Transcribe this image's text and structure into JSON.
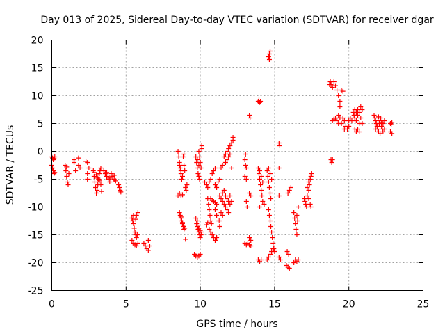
{
  "chart_data": {
    "type": "scatter",
    "title": "Day 013 of 2025, Sidereal Day-to-day VTEC variation (SDTVAR) for receiver dgar",
    "xlabel": "GPS time / hours",
    "ylabel": "SDTVAR / TECUs",
    "xlim": [
      0,
      25
    ],
    "ylim": [
      -25,
      20
    ],
    "xticks": [
      0,
      5,
      10,
      15,
      20,
      25
    ],
    "yticks": [
      -25,
      -20,
      -15,
      -10,
      -5,
      0,
      5,
      10,
      15,
      20
    ],
    "grid": true,
    "marker": "plus",
    "color": "#ff0000",
    "points": [
      [
        0.0,
        -1.0
      ],
      [
        0.05,
        -1.2
      ],
      [
        0.1,
        -1.5
      ],
      [
        0.15,
        -1.3
      ],
      [
        0.2,
        -1.0
      ],
      [
        0.05,
        -3.0
      ],
      [
        0.1,
        -3.5
      ],
      [
        0.15,
        -4.0
      ],
      [
        0.2,
        -3.8
      ],
      [
        0.0,
        -2.5
      ],
      [
        0.9,
        -2.5
      ],
      [
        0.95,
        -3.5
      ],
      [
        1.0,
        -4.5
      ],
      [
        1.05,
        -5.5
      ],
      [
        1.1,
        -6.0
      ],
      [
        1.0,
        -2.8
      ],
      [
        1.15,
        -4.0
      ],
      [
        1.5,
        -1.5
      ],
      [
        1.5,
        -2.0
      ],
      [
        1.6,
        -3.5
      ],
      [
        1.8,
        -1.2
      ],
      [
        1.8,
        -2.5
      ],
      [
        1.9,
        -3.0
      ],
      [
        2.3,
        -1.8
      ],
      [
        2.4,
        -2.0
      ],
      [
        2.4,
        -4.0
      ],
      [
        2.4,
        -5.0
      ],
      [
        2.5,
        -3.0
      ],
      [
        2.8,
        -3.5
      ],
      [
        2.85,
        -4.5
      ],
      [
        2.9,
        -5.5
      ],
      [
        2.95,
        -6.5
      ],
      [
        3.0,
        -7.5
      ],
      [
        3.05,
        -7.0
      ],
      [
        3.1,
        -6.0
      ],
      [
        3.15,
        -5.0
      ],
      [
        3.2,
        -4.0
      ],
      [
        3.25,
        -3.5
      ],
      [
        3.3,
        -3.0
      ],
      [
        2.9,
        -3.8
      ],
      [
        3.0,
        -4.2
      ],
      [
        3.1,
        -4.8
      ],
      [
        3.2,
        -5.3
      ],
      [
        3.3,
        -6.0
      ],
      [
        3.35,
        -7.2
      ],
      [
        3.5,
        -3.5
      ],
      [
        3.6,
        -4.0
      ],
      [
        3.7,
        -4.5
      ],
      [
        3.8,
        -5.0
      ],
      [
        3.9,
        -5.5
      ],
      [
        3.7,
        -3.8
      ],
      [
        3.9,
        -4.8
      ],
      [
        4.0,
        -4.0
      ],
      [
        4.1,
        -4.5
      ],
      [
        4.2,
        -5.0
      ],
      [
        4.3,
        -5.3
      ],
      [
        4.2,
        -4.3
      ],
      [
        4.5,
        -6.0
      ],
      [
        4.55,
        -6.5
      ],
      [
        4.6,
        -7.0
      ],
      [
        4.65,
        -7.3
      ],
      [
        5.4,
        -12.0
      ],
      [
        5.45,
        -12.5
      ],
      [
        5.5,
        -13.0
      ],
      [
        5.55,
        -13.8
      ],
      [
        5.6,
        -14.5
      ],
      [
        5.65,
        -15.0
      ],
      [
        5.7,
        -15.5
      ],
      [
        5.75,
        -15.0
      ],
      [
        5.5,
        -11.5
      ],
      [
        5.65,
        -12.2
      ],
      [
        5.7,
        -11.5
      ],
      [
        5.8,
        -11.0
      ],
      [
        5.4,
        -16.0
      ],
      [
        5.5,
        -16.5
      ],
      [
        5.6,
        -16.8
      ],
      [
        5.7,
        -17.0
      ],
      [
        5.8,
        -16.5
      ],
      [
        6.2,
        -16.5
      ],
      [
        6.3,
        -17.0
      ],
      [
        6.4,
        -17.5
      ],
      [
        6.5,
        -17.8
      ],
      [
        6.5,
        -16.0
      ],
      [
        6.6,
        -17.0
      ],
      [
        8.5,
        0.0
      ],
      [
        8.55,
        -1.0
      ],
      [
        8.6,
        -2.0
      ],
      [
        8.65,
        -3.0
      ],
      [
        8.7,
        -4.0
      ],
      [
        8.75,
        -5.0
      ],
      [
        8.6,
        -2.5
      ],
      [
        8.7,
        -3.5
      ],
      [
        8.8,
        -4.5
      ],
      [
        8.85,
        -1.0
      ],
      [
        8.9,
        -0.5
      ],
      [
        8.9,
        -2.5
      ],
      [
        8.95,
        -3.5
      ],
      [
        8.5,
        -8.0
      ],
      [
        8.6,
        -7.5
      ],
      [
        8.7,
        -8.0
      ],
      [
        8.8,
        -7.8
      ],
      [
        8.6,
        -11.0
      ],
      [
        8.65,
        -11.5
      ],
      [
        8.7,
        -12.0
      ],
      [
        8.75,
        -12.5
      ],
      [
        8.8,
        -13.0
      ],
      [
        8.85,
        -13.5
      ],
      [
        8.9,
        -14.0
      ],
      [
        8.95,
        -13.8
      ],
      [
        8.7,
        -11.8
      ],
      [
        8.8,
        -12.8
      ],
      [
        9.0,
        -6.5
      ],
      [
        9.05,
        -7.0
      ],
      [
        9.1,
        -6.0
      ],
      [
        9.0,
        -15.8
      ],
      [
        9.7,
        -1.0
      ],
      [
        9.75,
        -2.0
      ],
      [
        9.8,
        -3.0
      ],
      [
        9.85,
        -4.0
      ],
      [
        9.9,
        -4.5
      ],
      [
        9.95,
        -5.0
      ],
      [
        9.9,
        0.0
      ],
      [
        9.95,
        -1.0
      ],
      [
        10.0,
        -2.0
      ],
      [
        10.05,
        -3.0
      ],
      [
        10.1,
        0.5
      ],
      [
        10.1,
        1.0
      ],
      [
        9.8,
        -1.5
      ],
      [
        9.9,
        -2.5
      ],
      [
        9.7,
        -12.0
      ],
      [
        9.75,
        -13.0
      ],
      [
        9.8,
        -13.5
      ],
      [
        9.85,
        -14.0
      ],
      [
        9.9,
        -14.5
      ],
      [
        9.95,
        -15.0
      ],
      [
        10.0,
        -15.5
      ],
      [
        10.05,
        -15.0
      ],
      [
        10.1,
        -14.5
      ],
      [
        9.8,
        -12.5
      ],
      [
        9.9,
        -13.8
      ],
      [
        10.0,
        -14.2
      ],
      [
        9.6,
        -18.5
      ],
      [
        9.7,
        -18.8
      ],
      [
        9.8,
        -19.0
      ],
      [
        9.9,
        -18.8
      ],
      [
        10.0,
        -18.5
      ],
      [
        10.3,
        -5.5
      ],
      [
        10.4,
        -6.0
      ],
      [
        10.5,
        -6.5
      ],
      [
        10.6,
        -5.5
      ],
      [
        10.7,
        -5.0
      ],
      [
        10.8,
        -4.0
      ],
      [
        10.9,
        -3.5
      ],
      [
        11.0,
        -3.0
      ],
      [
        10.5,
        -8.5
      ],
      [
        10.55,
        -9.5
      ],
      [
        10.6,
        -10.5
      ],
      [
        10.65,
        -11.5
      ],
      [
        10.7,
        -12.5
      ],
      [
        10.75,
        -13.0
      ],
      [
        10.5,
        -12.8
      ],
      [
        10.4,
        -13.2
      ],
      [
        10.6,
        -14.0
      ],
      [
        10.7,
        -14.5
      ],
      [
        10.8,
        -15.0
      ],
      [
        10.9,
        -15.5
      ],
      [
        11.0,
        -16.0
      ],
      [
        11.1,
        -15.5
      ],
      [
        10.7,
        -8.5
      ],
      [
        10.8,
        -8.8
      ],
      [
        10.9,
        -9.0
      ],
      [
        11.0,
        -9.2
      ],
      [
        11.1,
        -9.5
      ],
      [
        11.0,
        -10.5
      ],
      [
        11.1,
        -11.5
      ],
      [
        11.2,
        -12.5
      ],
      [
        11.3,
        -13.5
      ],
      [
        11.0,
        -6.0
      ],
      [
        11.1,
        -6.5
      ],
      [
        11.2,
        -5.5
      ],
      [
        11.3,
        -5.0
      ],
      [
        11.3,
        -8.0
      ],
      [
        11.4,
        -8.5
      ],
      [
        11.5,
        -9.0
      ],
      [
        11.6,
        -9.5
      ],
      [
        11.7,
        -10.0
      ],
      [
        11.8,
        -10.5
      ],
      [
        11.9,
        -11.0
      ],
      [
        11.5,
        -7.5
      ],
      [
        11.6,
        -7.0
      ],
      [
        11.7,
        -8.0
      ],
      [
        11.8,
        -8.5
      ],
      [
        11.9,
        -9.0
      ],
      [
        12.0,
        -9.5
      ],
      [
        12.0,
        -8.0
      ],
      [
        12.1,
        -9.0
      ],
      [
        11.4,
        -11.0
      ],
      [
        11.5,
        -11.5
      ],
      [
        11.3,
        -12.5
      ],
      [
        11.4,
        -3.0
      ],
      [
        11.5,
        -2.5
      ],
      [
        11.6,
        -1.0
      ],
      [
        11.7,
        -0.5
      ],
      [
        11.8,
        0.0
      ],
      [
        11.9,
        0.5
      ],
      [
        12.0,
        1.0
      ],
      [
        12.1,
        1.5
      ],
      [
        12.2,
        2.0
      ],
      [
        12.2,
        2.5
      ],
      [
        11.7,
        -2.0
      ],
      [
        11.8,
        -1.5
      ],
      [
        11.9,
        -1.0
      ],
      [
        12.0,
        -0.5
      ],
      [
        12.1,
        -3.0
      ],
      [
        13.0,
        -1.5
      ],
      [
        13.05,
        -2.5
      ],
      [
        13.1,
        -3.0
      ],
      [
        13.05,
        -0.5
      ],
      [
        13.1,
        -5.0
      ],
      [
        13.0,
        -4.5
      ],
      [
        13.1,
        -9.0
      ],
      [
        13.15,
        -10.0
      ],
      [
        13.0,
        -16.5
      ],
      [
        13.1,
        -16.8
      ],
      [
        13.2,
        -16.5
      ],
      [
        13.3,
        -16.8
      ],
      [
        13.4,
        -17.0
      ],
      [
        13.3,
        -15.5
      ],
      [
        13.4,
        -16.0
      ],
      [
        13.3,
        6.5
      ],
      [
        13.35,
        6.0
      ],
      [
        13.3,
        -7.5
      ],
      [
        13.4,
        -8.0
      ],
      [
        13.9,
        -3.0
      ],
      [
        13.95,
        -4.0
      ],
      [
        14.0,
        -5.0
      ],
      [
        14.05,
        -6.0
      ],
      [
        14.1,
        -7.0
      ],
      [
        14.15,
        -8.0
      ],
      [
        14.2,
        -9.0
      ],
      [
        14.3,
        -9.5
      ],
      [
        14.0,
        -3.5
      ],
      [
        14.1,
        -4.5
      ],
      [
        14.2,
        -5.5
      ],
      [
        13.9,
        9.0
      ],
      [
        13.95,
        9.2
      ],
      [
        14.0,
        8.8
      ],
      [
        14.05,
        9.0
      ],
      [
        14.0,
        -10.0
      ],
      [
        13.9,
        -19.5
      ],
      [
        14.0,
        -19.8
      ],
      [
        14.1,
        -19.5
      ],
      [
        14.6,
        17.0
      ],
      [
        14.65,
        17.5
      ],
      [
        14.7,
        18.0
      ],
      [
        14.65,
        16.5
      ],
      [
        14.5,
        -3.5
      ],
      [
        14.55,
        -4.5
      ],
      [
        14.6,
        -5.5
      ],
      [
        14.65,
        -6.5
      ],
      [
        14.7,
        -7.5
      ],
      [
        14.75,
        -8.5
      ],
      [
        14.7,
        -4.0
      ],
      [
        14.8,
        -5.0
      ],
      [
        14.6,
        -3.0
      ],
      [
        14.6,
        -10.5
      ],
      [
        14.65,
        -11.5
      ],
      [
        14.7,
        -12.5
      ],
      [
        14.75,
        -13.5
      ],
      [
        14.8,
        -14.5
      ],
      [
        14.85,
        -15.5
      ],
      [
        14.9,
        -16.5
      ],
      [
        14.95,
        -17.5
      ],
      [
        15.0,
        -18.0
      ],
      [
        14.6,
        -19.0
      ],
      [
        14.7,
        -18.5
      ],
      [
        14.8,
        -18.0
      ],
      [
        14.9,
        -17.5
      ],
      [
        14.5,
        -19.5
      ],
      [
        15.3,
        1.5
      ],
      [
        15.35,
        1.0
      ],
      [
        15.3,
        -3.0
      ],
      [
        15.3,
        -8.0
      ],
      [
        15.3,
        -19.0
      ],
      [
        15.4,
        -19.5
      ],
      [
        15.8,
        -20.5
      ],
      [
        15.9,
        -20.8
      ],
      [
        16.0,
        -21.0
      ],
      [
        15.85,
        -18.0
      ],
      [
        15.95,
        -18.5
      ],
      [
        16.0,
        -7.0
      ],
      [
        16.1,
        -6.5
      ],
      [
        15.9,
        -7.5
      ],
      [
        16.3,
        -11.0
      ],
      [
        16.35,
        -12.0
      ],
      [
        16.4,
        -13.0
      ],
      [
        16.45,
        -14.0
      ],
      [
        16.5,
        -15.0
      ],
      [
        16.6,
        -10.0
      ],
      [
        16.5,
        -11.5
      ],
      [
        16.55,
        -12.5
      ],
      [
        16.4,
        -19.5
      ],
      [
        16.5,
        -19.8
      ],
      [
        16.6,
        -19.5
      ],
      [
        16.3,
        -20.0
      ],
      [
        17.0,
        -8.5
      ],
      [
        17.05,
        -9.0
      ],
      [
        17.1,
        -9.5
      ],
      [
        17.15,
        -10.0
      ],
      [
        17.2,
        -8.0
      ],
      [
        17.3,
        -7.0
      ],
      [
        17.35,
        -6.0
      ],
      [
        17.4,
        -5.0
      ],
      [
        17.45,
        -4.5
      ],
      [
        17.5,
        -4.0
      ],
      [
        17.3,
        -8.5
      ],
      [
        17.4,
        -9.5
      ],
      [
        17.45,
        -10.0
      ],
      [
        17.2,
        -6.5
      ],
      [
        17.3,
        -5.5
      ],
      [
        18.7,
        12.0
      ],
      [
        18.75,
        12.5
      ],
      [
        18.8,
        12.0
      ],
      [
        18.9,
        11.5
      ],
      [
        19.0,
        12.5
      ],
      [
        19.1,
        11.8
      ],
      [
        19.2,
        11.0
      ],
      [
        19.3,
        10.0
      ],
      [
        19.4,
        9.0
      ],
      [
        19.4,
        8.0
      ],
      [
        19.5,
        11.0
      ],
      [
        19.6,
        10.8
      ],
      [
        18.8,
        -1.5
      ],
      [
        18.85,
        -2.0
      ],
      [
        18.9,
        -1.5
      ],
      [
        18.9,
        5.5
      ],
      [
        19.0,
        5.8
      ],
      [
        19.1,
        6.0
      ],
      [
        19.2,
        5.5
      ],
      [
        19.3,
        5.0
      ],
      [
        19.4,
        6.0
      ],
      [
        19.5,
        5.0
      ],
      [
        19.6,
        6.0
      ],
      [
        19.7,
        5.5
      ],
      [
        19.8,
        4.5
      ],
      [
        19.9,
        4.0
      ],
      [
        20.0,
        5.5
      ],
      [
        20.1,
        6.0
      ],
      [
        20.2,
        5.5
      ],
      [
        19.3,
        6.5
      ],
      [
        19.7,
        4.0
      ],
      [
        20.0,
        4.5
      ],
      [
        20.3,
        7.0
      ],
      [
        20.35,
        6.5
      ],
      [
        20.4,
        6.0
      ],
      [
        20.5,
        7.0
      ],
      [
        20.6,
        7.5
      ],
      [
        20.7,
        7.0
      ],
      [
        20.8,
        8.0
      ],
      [
        20.9,
        7.5
      ],
      [
        20.4,
        7.5
      ],
      [
        20.6,
        6.5
      ],
      [
        20.8,
        6.0
      ],
      [
        20.5,
        5.5
      ],
      [
        20.7,
        5.0
      ],
      [
        20.9,
        5.0
      ],
      [
        20.5,
        3.5
      ],
      [
        20.6,
        4.0
      ],
      [
        20.7,
        3.5
      ],
      [
        20.4,
        4.0
      ],
      [
        21.7,
        6.5
      ],
      [
        21.75,
        6.0
      ],
      [
        21.8,
        5.5
      ],
      [
        21.85,
        5.0
      ],
      [
        21.9,
        4.5
      ],
      [
        21.95,
        4.0
      ],
      [
        22.0,
        3.5
      ],
      [
        22.05,
        5.0
      ],
      [
        22.1,
        5.5
      ],
      [
        22.15,
        6.0
      ],
      [
        22.2,
        4.5
      ],
      [
        22.25,
        4.0
      ],
      [
        22.3,
        3.5
      ],
      [
        22.3,
        5.0
      ],
      [
        22.2,
        5.2
      ],
      [
        22.1,
        3.2
      ],
      [
        21.8,
        4.0
      ],
      [
        22.0,
        6.2
      ],
      [
        22.4,
        4.0
      ],
      [
        22.4,
        5.5
      ],
      [
        22.8,
        5.0
      ],
      [
        22.85,
        4.8
      ],
      [
        22.9,
        5.2
      ],
      [
        22.8,
        3.5
      ],
      [
        22.9,
        3.2
      ]
    ]
  }
}
